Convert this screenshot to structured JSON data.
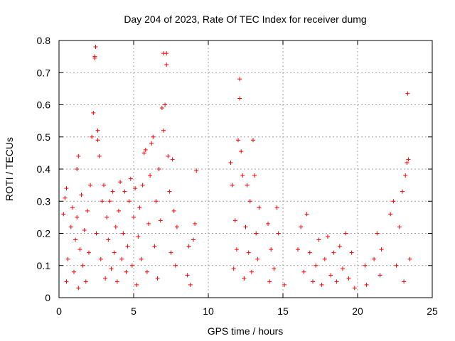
{
  "chart_data": {
    "type": "scatter",
    "title": "Day 204 of 2023, Rate Of TEC Index for receiver dumg",
    "xlabel": "GPS time / hours",
    "ylabel": "ROTI / TECUs",
    "xlim": [
      0,
      25
    ],
    "ylim": [
      0,
      0.8
    ],
    "xticks": [
      0,
      5,
      10,
      15,
      20,
      25
    ],
    "yticks": [
      0,
      0.1,
      0.2,
      0.3,
      0.4,
      0.5,
      0.6,
      0.7,
      0.8
    ],
    "xtick_labels": [
      "0",
      "5",
      "10",
      "15",
      "20",
      "25"
    ],
    "ytick_labels": [
      "0",
      "0.1",
      "0.2",
      "0.3",
      "0.4",
      "0.5",
      "0.6",
      "0.7",
      "0.8"
    ],
    "grid": true,
    "marker": "+",
    "color": "#ff0000",
    "series": [
      {
        "name": "ROTI",
        "points": [
          [
            0.3,
            0.26
          ],
          [
            0.4,
            0.31
          ],
          [
            0.5,
            0.34
          ],
          [
            0.5,
            0.05
          ],
          [
            0.6,
            0.12
          ],
          [
            0.8,
            0.22
          ],
          [
            0.9,
            0.28
          ],
          [
            1.0,
            0.08
          ],
          [
            1.1,
            0.18
          ],
          [
            1.2,
            0.25
          ],
          [
            1.2,
            0.4
          ],
          [
            1.3,
            0.44
          ],
          [
            1.3,
            0.03
          ],
          [
            1.4,
            0.15
          ],
          [
            1.5,
            0.32
          ],
          [
            1.6,
            0.1
          ],
          [
            1.7,
            0.21
          ],
          [
            1.8,
            0.05
          ],
          [
            1.9,
            0.27
          ],
          [
            2.0,
            0.14
          ],
          [
            2.1,
            0.35
          ],
          [
            2.2,
            0.5
          ],
          [
            2.3,
            0.575
          ],
          [
            2.4,
            0.745
          ],
          [
            2.4,
            0.75
          ],
          [
            2.45,
            0.78
          ],
          [
            2.5,
            0.2
          ],
          [
            2.6,
            0.52
          ],
          [
            2.6,
            0.49
          ],
          [
            2.7,
            0.44
          ],
          [
            2.8,
            0.12
          ],
          [
            2.9,
            0.3
          ],
          [
            3.0,
            0.35
          ],
          [
            3.1,
            0.06
          ],
          [
            3.2,
            0.25
          ],
          [
            3.3,
            0.18
          ],
          [
            3.4,
            0.3
          ],
          [
            3.5,
            0.09
          ],
          [
            3.6,
            0.33
          ],
          [
            3.7,
            0.14
          ],
          [
            3.8,
            0.22
          ],
          [
            3.9,
            0.05
          ],
          [
            4.0,
            0.27
          ],
          [
            4.1,
            0.36
          ],
          [
            4.2,
            0.12
          ],
          [
            4.3,
            0.2
          ],
          [
            4.4,
            0.33
          ],
          [
            4.5,
            0.08
          ],
          [
            4.6,
            0.16
          ],
          [
            4.7,
            0.3
          ],
          [
            4.8,
            0.37
          ],
          [
            4.9,
            0.1
          ],
          [
            5.0,
            0.25
          ],
          [
            5.1,
            0.34
          ],
          [
            5.2,
            0.04
          ],
          [
            5.3,
            0.19
          ],
          [
            5.4,
            0.28
          ],
          [
            5.5,
            0.12
          ],
          [
            5.6,
            0.35
          ],
          [
            5.7,
            0.45
          ],
          [
            5.8,
            0.46
          ],
          [
            5.9,
            0.08
          ],
          [
            6.0,
            0.23
          ],
          [
            6.1,
            0.38
          ],
          [
            6.2,
            0.48
          ],
          [
            6.3,
            0.5
          ],
          [
            6.4,
            0.16
          ],
          [
            6.5,
            0.3
          ],
          [
            6.6,
            0.06
          ],
          [
            6.7,
            0.4
          ],
          [
            6.8,
            0.24
          ],
          [
            6.9,
            0.59
          ],
          [
            7.0,
            0.76
          ],
          [
            7.0,
            0.52
          ],
          [
            7.1,
            0.6
          ],
          [
            7.2,
            0.76
          ],
          [
            7.2,
            0.725
          ],
          [
            7.3,
            0.44
          ],
          [
            7.4,
            0.33
          ],
          [
            7.5,
            0.14
          ],
          [
            7.6,
            0.43
          ],
          [
            7.7,
            0.27
          ],
          [
            7.8,
            0.1
          ],
          [
            7.9,
            0.22
          ],
          [
            8.6,
            0.07
          ],
          [
            8.7,
            0.16
          ],
          [
            8.8,
            0.04
          ],
          [
            9.0,
            0.18
          ],
          [
            9.1,
            0.23
          ],
          [
            9.2,
            0.395
          ],
          [
            11.5,
            0.42
          ],
          [
            11.6,
            0.35
          ],
          [
            11.7,
            0.09
          ],
          [
            11.8,
            0.24
          ],
          [
            11.9,
            0.15
          ],
          [
            12.0,
            0.49
          ],
          [
            12.1,
            0.62
          ],
          [
            12.1,
            0.68
          ],
          [
            12.2,
            0.455
          ],
          [
            12.3,
            0.38
          ],
          [
            12.4,
            0.06
          ],
          [
            12.5,
            0.22
          ],
          [
            12.6,
            0.35
          ],
          [
            12.7,
            0.14
          ],
          [
            12.8,
            0.3
          ],
          [
            12.9,
            0.08
          ],
          [
            13.0,
            0.49
          ],
          [
            13.1,
            0.38
          ],
          [
            13.2,
            0.2
          ],
          [
            13.3,
            0.12
          ],
          [
            13.4,
            0.28
          ],
          [
            14.0,
            0.23
          ],
          [
            14.1,
            0.05
          ],
          [
            14.2,
            0.15
          ],
          [
            14.4,
            0.09
          ],
          [
            14.6,
            0.28
          ],
          [
            14.7,
            0.2
          ],
          [
            15.1,
            0.04
          ],
          [
            16.0,
            0.15
          ],
          [
            16.2,
            0.22
          ],
          [
            16.4,
            0.08
          ],
          [
            16.6,
            0.26
          ],
          [
            16.8,
            0.14
          ],
          [
            17.0,
            0.05
          ],
          [
            17.2,
            0.1
          ],
          [
            17.4,
            0.18
          ],
          [
            17.6,
            0.04
          ],
          [
            17.8,
            0.12
          ],
          [
            18.0,
            0.19
          ],
          [
            18.2,
            0.07
          ],
          [
            18.4,
            0.14
          ],
          [
            18.6,
            0.05
          ],
          [
            18.8,
            0.16
          ],
          [
            19.0,
            0.09
          ],
          [
            19.2,
            0.2
          ],
          [
            19.4,
            0.06
          ],
          [
            19.6,
            0.14
          ],
          [
            19.8,
            0.03
          ],
          [
            20.5,
            0.1
          ],
          [
            20.6,
            0.04
          ],
          [
            21.1,
            0.12
          ],
          [
            21.3,
            0.2
          ],
          [
            21.5,
            0.07
          ],
          [
            21.6,
            0.15
          ],
          [
            22.2,
            0.26
          ],
          [
            22.4,
            0.3
          ],
          [
            22.6,
            0.1
          ],
          [
            22.8,
            0.22
          ],
          [
            23.0,
            0.33
          ],
          [
            23.1,
            0.05
          ],
          [
            23.2,
            0.38
          ],
          [
            23.3,
            0.42
          ],
          [
            23.35,
            0.635
          ],
          [
            23.4,
            0.43
          ],
          [
            23.5,
            0.12
          ]
        ]
      }
    ]
  }
}
